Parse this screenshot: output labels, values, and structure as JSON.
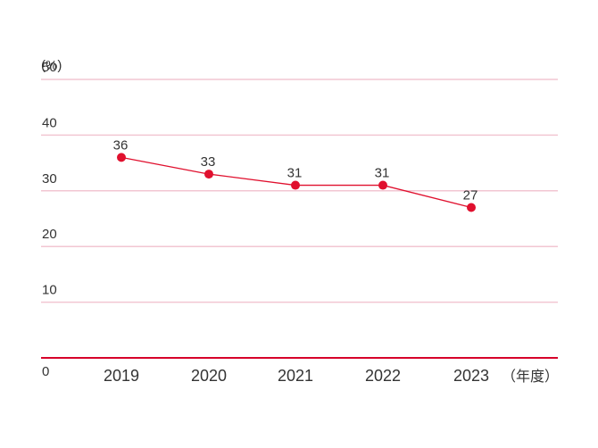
{
  "colors": {
    "line": "#e0102e",
    "point": "#e0102e",
    "baseline": "#d7002a",
    "grid": "#f2c6d2",
    "text": "#333333"
  },
  "chart_data": {
    "type": "line",
    "y_unit_label": "(%)",
    "x_unit_label": "（年度）",
    "categories": [
      "2019",
      "2020",
      "2021",
      "2022",
      "2023"
    ],
    "series": [
      {
        "values": [
          36,
          33,
          31,
          31,
          27
        ]
      }
    ],
    "data_labels": [
      "36",
      "33",
      "31",
      "31",
      "27"
    ],
    "ylim": [
      0,
      50
    ],
    "yticks": [
      0,
      10,
      20,
      30,
      40,
      50
    ],
    "ytick_labels": [
      "0",
      "10",
      "20",
      "30",
      "40",
      "50"
    ],
    "grid": true,
    "legend": "none"
  }
}
